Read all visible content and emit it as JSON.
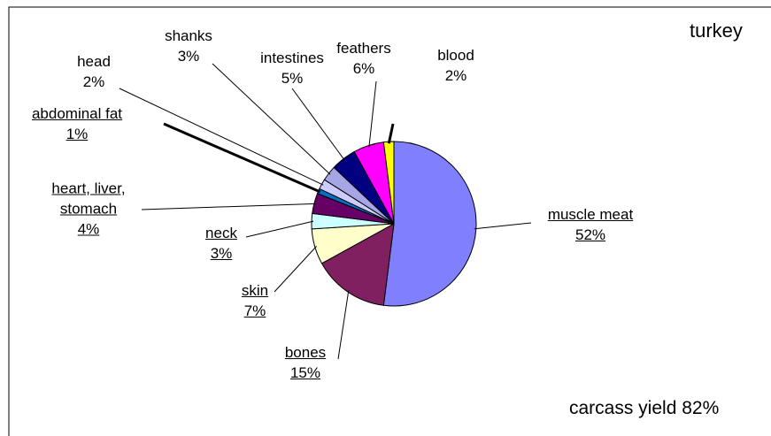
{
  "chart_data": {
    "type": "pie",
    "title": "turkey",
    "subtitle": "carcass yield 82%",
    "categories": [
      "muscle meat",
      "bones",
      "skin",
      "neck",
      "heart, liver, stomach",
      "abdominal fat",
      "head",
      "shanks",
      "intestines",
      "feathers",
      "blood"
    ],
    "values": [
      52,
      15,
      7,
      3,
      4,
      1,
      2,
      3,
      5,
      6,
      2
    ],
    "value_labels": [
      "52%",
      "15%",
      "7%",
      "3%",
      "4%",
      "1%",
      "2%",
      "3%",
      "5%",
      "6%",
      "2%"
    ],
    "colors": [
      "#8080ff",
      "#802060",
      "#ffffcc",
      "#ccffff",
      "#660066",
      "#0070c0",
      "#ccccff",
      "#a6a6e6",
      "#000080",
      "#ff00ff",
      "#ffff00"
    ]
  }
}
